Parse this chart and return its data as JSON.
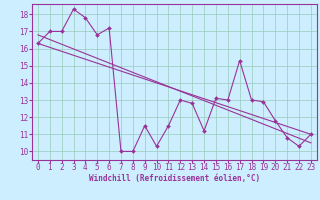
{
  "bg_color": "#cceeff",
  "line_color": "#993399",
  "grid_color": "#99ccbb",
  "xlabel": "Windchill (Refroidissement éolien,°C)",
  "xlabel_color": "#993399",
  "xlabel_fontsize": 5.5,
  "tick_fontsize": 5.5,
  "tick_color": "#993399",
  "xlim": [
    -0.5,
    23.5
  ],
  "ylim": [
    9.5,
    18.6
  ],
  "yticks": [
    10,
    11,
    12,
    13,
    14,
    15,
    16,
    17,
    18
  ],
  "xticks": [
    0,
    1,
    2,
    3,
    4,
    5,
    6,
    7,
    8,
    9,
    10,
    11,
    12,
    13,
    14,
    15,
    16,
    17,
    18,
    19,
    20,
    21,
    22,
    23
  ],
  "series1_x": [
    0,
    1,
    2,
    3,
    4,
    5,
    6,
    7,
    8,
    9,
    10,
    11,
    12,
    13,
    14,
    15,
    16,
    17,
    18,
    19,
    20,
    21,
    22,
    23
  ],
  "series1_y": [
    16.3,
    17.0,
    17.0,
    18.3,
    17.8,
    16.8,
    17.2,
    10.0,
    10.0,
    11.5,
    10.3,
    11.5,
    13.0,
    12.8,
    11.2,
    13.1,
    13.0,
    15.3,
    13.0,
    12.9,
    11.8,
    10.8,
    10.3,
    11.0
  ],
  "series2_x": [
    0,
    23
  ],
  "series2_y": [
    16.3,
    11.0
  ],
  "series3_x": [
    0,
    23
  ],
  "series3_y": [
    16.8,
    10.5
  ]
}
